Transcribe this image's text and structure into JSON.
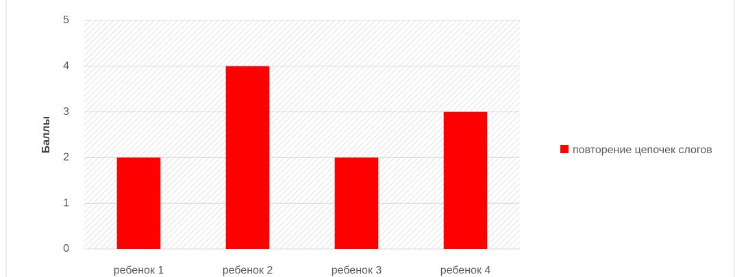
{
  "chart_data": {
    "type": "bar",
    "y_axis_label": "Баллы",
    "categories": [
      "ребенок 1",
      "ребенок 2",
      "ребенок 3",
      "ребенок 4"
    ],
    "series": [
      {
        "name": "повторение цепочек слогов",
        "color": "#ff0000",
        "values": [
          2,
          4,
          2,
          3
        ]
      }
    ],
    "ylim": [
      0,
      5
    ],
    "yticks": [
      0,
      1,
      2,
      3,
      4,
      5
    ],
    "grid": true,
    "legend": "right"
  }
}
